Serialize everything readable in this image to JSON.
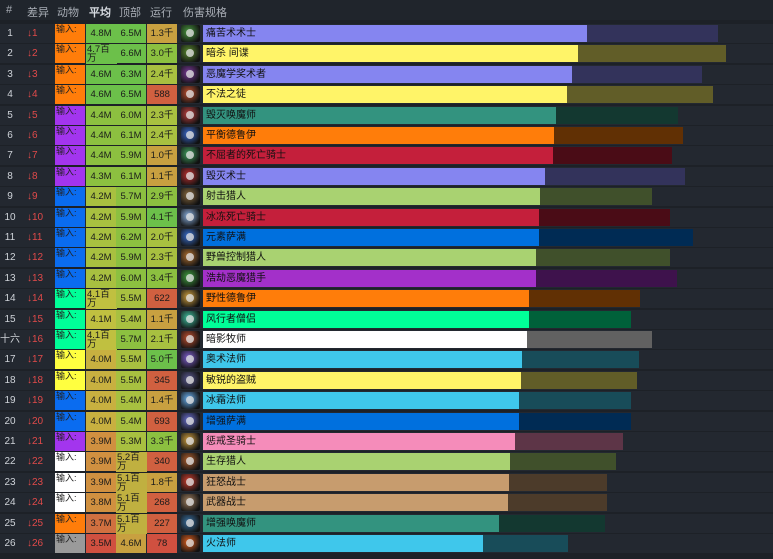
{
  "headers": {
    "rank": "#",
    "diff": "差异",
    "class": "动物",
    "avg": "平均",
    "top": "顶部",
    "run": "运行",
    "spec": "伤害规格"
  },
  "rows": [
    {
      "rank": "1",
      "diff": "↓1",
      "cls": "输入:",
      "avg": "4.8M",
      "top": "6.5M",
      "run": "1.3千",
      "spec": "痛苦术术士",
      "color": "#8585f0",
      "avg_frac": 0.499,
      "top_frac": 0.669,
      "cls_color": "#ff7d0a",
      "avg_color": "#6cc04a",
      "top_color": "#6cc04a",
      "run_color": "#c8a040",
      "icon": "affliction-warlock-icon",
      "icon_color": "#4a9a40"
    },
    {
      "rank": "2",
      "diff": "↓2",
      "cls": "输入:",
      "avg": "4.7百万",
      "top": "6.6M",
      "run": "3.0千",
      "spec": "暗杀 间谍",
      "color": "#fff468",
      "avg_frac": 0.487,
      "top_frac": 0.679,
      "cls_color": "#ff7d0a",
      "avg_color": "#6cc04a",
      "top_color": "#6cc04a",
      "run_color": "#8cc040",
      "icon": "assassination-rogue-icon",
      "icon_color": "#5a8a30"
    },
    {
      "rank": "3",
      "diff": "↓3",
      "cls": "输入:",
      "avg": "4.6M",
      "top": "6.3M",
      "run": "2.4千",
      "spec": "恶魔学奖术者",
      "color": "#8585f0",
      "avg_frac": 0.479,
      "top_frac": 0.648,
      "cls_color": "#ff7d0a",
      "avg_color": "#6cc04a",
      "top_color": "#6cc04a",
      "run_color": "#a8c040",
      "icon": "demonology-warlock-icon",
      "icon_color": "#7a3a9a"
    },
    {
      "rank": "4",
      "diff": "↓4",
      "cls": "输入:",
      "avg": "4.6M",
      "top": "6.5M",
      "run": "588",
      "spec": "不法之徒",
      "color": "#fff468",
      "avg_frac": 0.473,
      "top_frac": 0.662,
      "cls_color": "#ff7d0a",
      "avg_color": "#6cc04a",
      "top_color": "#6cc04a",
      "run_color": "#d06040",
      "icon": "outlaw-rogue-icon",
      "icon_color": "#c05030"
    },
    {
      "rank": "5",
      "diff": "↓5",
      "cls": "输入:",
      "avg": "4.4M",
      "top": "6.0M",
      "run": "2.3千",
      "spec": "毁灭唤魔师",
      "color": "#33937f",
      "avg_frac": 0.458,
      "top_frac": 0.617,
      "cls_color": "#a335ee",
      "avg_color": "#8cc040",
      "top_color": "#8cc040",
      "run_color": "#a8c040",
      "icon": "devastation-evoker-icon",
      "icon_color": "#c04040"
    },
    {
      "rank": "6",
      "diff": "↓6",
      "cls": "输入:",
      "avg": "4.4M",
      "top": "6.1M",
      "run": "2.4千",
      "spec": "平衡德鲁伊",
      "color": "#ff7d0a",
      "avg_frac": 0.456,
      "top_frac": 0.623,
      "cls_color": "#a335ee",
      "avg_color": "#8cc040",
      "top_color": "#8cc040",
      "run_color": "#a8c040",
      "icon": "balance-druid-icon",
      "icon_color": "#3a6ad0"
    },
    {
      "rank": "7",
      "diff": "↓7",
      "cls": "输入:",
      "avg": "4.4M",
      "top": "5.9M",
      "run": "1.0千",
      "spec": "不屈者的死亡骑士",
      "color": "#c41f3b",
      "avg_frac": 0.455,
      "top_frac": 0.609,
      "cls_color": "#a335ee",
      "avg_color": "#8cc040",
      "top_color": "#8cc040",
      "run_color": "#c8a040",
      "icon": "unholy-death-knight-icon",
      "icon_color": "#40a060"
    },
    {
      "rank": "8",
      "diff": "↓8",
      "cls": "输入:",
      "avg": "4.3M",
      "top": "6.1M",
      "run": "1.1千",
      "spec": "毁灭术士",
      "color": "#8585f0",
      "avg_frac": 0.444,
      "top_frac": 0.626,
      "cls_color": "#a335ee",
      "avg_color": "#8cc040",
      "top_color": "#8cc040",
      "run_color": "#c8a040",
      "icon": "destruction-warlock-icon",
      "icon_color": "#c03030"
    },
    {
      "rank": "9",
      "diff": "↓9",
      "cls": "输入:",
      "avg": "4.2M",
      "top": "5.7M",
      "run": "2.9千",
      "spec": "射击猎人",
      "color": "#a9d271",
      "avg_frac": 0.438,
      "top_frac": 0.583,
      "cls_color": "#0a6cf0",
      "avg_color": "#a8c040",
      "top_color": "#8cc040",
      "run_color": "#8cc040",
      "icon": "marksmanship-hunter-icon",
      "icon_color": "#8a6a40"
    },
    {
      "rank": "10",
      "diff": "↓10",
      "cls": "输入:",
      "avg": "4.2M",
      "top": "5.9M",
      "run": "4.1千",
      "spec": "冰冻死亡骑士",
      "color": "#c41f3b",
      "avg_frac": 0.436,
      "top_frac": 0.607,
      "cls_color": "#0a6cf0",
      "avg_color": "#a8c040",
      "top_color": "#8cc040",
      "run_color": "#6cc04a",
      "icon": "frost-death-knight-icon",
      "icon_color": "#8ab0e0"
    },
    {
      "rank": "11",
      "diff": "↓11",
      "cls": "输入:",
      "avg": "4.2M",
      "top": "6.2M",
      "run": "2.0千",
      "spec": "元素萨满",
      "color": "#0070de",
      "avg_frac": 0.436,
      "top_frac": 0.636,
      "cls_color": "#0a6cf0",
      "avg_color": "#a8c040",
      "top_color": "#8cc040",
      "run_color": "#a8c040",
      "icon": "elemental-shaman-icon",
      "icon_color": "#3a70d0"
    },
    {
      "rank": "12",
      "diff": "↓12",
      "cls": "输入:",
      "avg": "4.2M",
      "top": "5.9M",
      "run": "2.3千",
      "spec": "野兽控制猎人",
      "color": "#a9d271",
      "avg_frac": 0.433,
      "top_frac": 0.607,
      "cls_color": "#0a6cf0",
      "avg_color": "#a8c040",
      "top_color": "#8cc040",
      "run_color": "#a8c040",
      "icon": "beast-mastery-hunter-icon",
      "icon_color": "#b07030"
    },
    {
      "rank": "13",
      "diff": "↓13",
      "cls": "输入:",
      "avg": "4.2M",
      "top": "6.0M",
      "run": "3.4千",
      "spec": "浩劫恶魔猎手",
      "color": "#a330c9",
      "avg_frac": 0.432,
      "top_frac": 0.616,
      "cls_color": "#0a6cf0",
      "avg_color": "#a8c040",
      "top_color": "#8cc040",
      "run_color": "#8cc040",
      "icon": "havoc-demon-hunter-icon",
      "icon_color": "#40a040"
    },
    {
      "rank": "14",
      "diff": "↓14",
      "cls": "输入:",
      "avg": "4.1百万",
      "top": "5.5M",
      "run": "622",
      "spec": "野性德鲁伊",
      "color": "#ff7d0a",
      "avg_frac": 0.424,
      "top_frac": 0.568,
      "cls_color": "#00ff98",
      "avg_color": "#c0c040",
      "top_color": "#a8c040",
      "run_color": "#d06040",
      "icon": "feral-druid-icon",
      "icon_color": "#d0a040"
    },
    {
      "rank": "15",
      "diff": "↓15",
      "cls": "输入:",
      "avg": "4.1M",
      "top": "5.4M",
      "run": "1.1千",
      "spec": "风行者僧侣",
      "color": "#00ff98",
      "avg_frac": 0.423,
      "top_frac": 0.556,
      "cls_color": "#00ff98",
      "avg_color": "#c0c040",
      "top_color": "#a8c040",
      "run_color": "#c8a040",
      "icon": "windwalker-monk-icon",
      "icon_color": "#40c0a0"
    },
    {
      "rank": "十六",
      "diff": "↓16",
      "cls": "输入:",
      "avg": "4.1百万",
      "top": "5.7M",
      "run": "2.1千",
      "spec": "暗影牧师",
      "color": "#ffffff",
      "avg_frac": 0.421,
      "top_frac": 0.583,
      "cls_color": "#00ff98",
      "avg_color": "#c0c040",
      "top_color": "#8cc040",
      "run_color": "#a8c040",
      "icon": "shadow-priest-icon",
      "icon_color": "#c05030"
    },
    {
      "rank": "17",
      "diff": "↓17",
      "cls": "输入:",
      "avg": "4.0M",
      "top": "5.5M",
      "run": "5.0千",
      "spec": "奥术法师",
      "color": "#3fc7eb",
      "avg_frac": 0.414,
      "top_frac": 0.566,
      "cls_color": "#ffff40",
      "avg_color": "#c8b040",
      "top_color": "#a8c040",
      "run_color": "#6cc04a",
      "icon": "arcane-mage-icon",
      "icon_color": "#8060d0"
    },
    {
      "rank": "18",
      "diff": "↓18",
      "cls": "输入:",
      "avg": "4.0M",
      "top": "5.5M",
      "run": "345",
      "spec": "敏锐的盗贼",
      "color": "#fff468",
      "avg_frac": 0.413,
      "top_frac": 0.564,
      "cls_color": "#ffff40",
      "avg_color": "#c8b040",
      "top_color": "#a8c040",
      "run_color": "#d06040",
      "icon": "subtlety-rogue-icon",
      "icon_color": "#5a5a90"
    },
    {
      "rank": "19",
      "diff": "↓19",
      "cls": "输入:",
      "avg": "4.0M",
      "top": "5.4M",
      "run": "1.4千",
      "spec": "冰霜法师",
      "color": "#3fc7eb",
      "avg_frac": 0.41,
      "top_frac": 0.556,
      "cls_color": "#0a6cf0",
      "avg_color": "#c8b040",
      "top_color": "#a8c040",
      "run_color": "#c8a040",
      "icon": "frost-mage-icon",
      "icon_color": "#6ab0f0"
    },
    {
      "rank": "20",
      "diff": "↓20",
      "cls": "输入:",
      "avg": "4.0M",
      "top": "5.4M",
      "run": "693",
      "spec": "增强萨满",
      "color": "#0070de",
      "avg_frac": 0.41,
      "top_frac": 0.556,
      "cls_color": "#0a6cf0",
      "avg_color": "#c8b040",
      "top_color": "#a8c040",
      "run_color": "#d06040",
      "icon": "enhancement-shaman-icon",
      "icon_color": "#6a70d0"
    },
    {
      "rank": "21",
      "diff": "↓21",
      "cls": "输入:",
      "avg": "3.9M",
      "top": "5.3M",
      "run": "3.3千",
      "spec": "惩戒圣骑士",
      "color": "#f58cba",
      "avg_frac": 0.405,
      "top_frac": 0.546,
      "cls_color": "#a335ee",
      "avg_color": "#d09040",
      "top_color": "#a8c040",
      "run_color": "#8cc040",
      "icon": "retribution-paladin-icon",
      "icon_color": "#d0a040"
    },
    {
      "rank": "22",
      "diff": "↓22",
      "cls": "输入:",
      "avg": "3.9M",
      "top": "5.2百万",
      "run": "340",
      "spec": "生存猎人",
      "color": "#a9d271",
      "avg_frac": 0.399,
      "top_frac": 0.536,
      "cls_color": "#ffffff",
      "avg_color": "#d09040",
      "top_color": "#c0b040",
      "run_color": "#d06040",
      "icon": "survival-hunter-icon",
      "icon_color": "#b06030"
    },
    {
      "rank": "23",
      "diff": "↓23",
      "cls": "输入:",
      "avg": "3.9M",
      "top": "5.1百万",
      "run": "1.8千",
      "spec": "狂怒战士",
      "color": "#c79c6e",
      "avg_frac": 0.397,
      "top_frac": 0.525,
      "cls_color": "#ffffff",
      "avg_color": "#d09040",
      "top_color": "#c0b040",
      "run_color": "#c8a040",
      "icon": "fury-warrior-icon",
      "icon_color": "#d04030"
    },
    {
      "rank": "24",
      "diff": "↓24",
      "cls": "输入:",
      "avg": "3.8M",
      "top": "5.1百万",
      "run": "268",
      "spec": "武器战士",
      "color": "#c79c6e",
      "avg_frac": 0.396,
      "top_frac": 0.525,
      "cls_color": "#ffffff",
      "avg_color": "#d09040",
      "top_color": "#c0b040",
      "run_color": "#d06040",
      "icon": "arms-warrior-icon",
      "icon_color": "#a08060"
    },
    {
      "rank": "25",
      "diff": "↓25",
      "cls": "输入:",
      "avg": "3.7M",
      "top": "5.1百万",
      "run": "227",
      "spec": "增强唤魔师",
      "color": "#33937f",
      "avg_frac": 0.384,
      "top_frac": 0.522,
      "cls_color": "#ff7d0a",
      "avg_color": "#d07040",
      "top_color": "#c0b040",
      "run_color": "#d06040",
      "icon": "augmentation-evoker-icon",
      "icon_color": "#3a70a0"
    },
    {
      "rank": "26",
      "diff": "↓26",
      "cls": "输入:",
      "avg": "3.5M",
      "top": "4.6M",
      "run": "78",
      "spec": "火法师",
      "color": "#3fc7eb",
      "avg_frac": 0.364,
      "top_frac": 0.474,
      "cls_color": "#9a9a9a",
      "avg_color": "#d05040",
      "top_color": "#c8a040",
      "run_color": "#d05040",
      "icon": "fire-mage-icon",
      "icon_color": "#e06020"
    }
  ]
}
